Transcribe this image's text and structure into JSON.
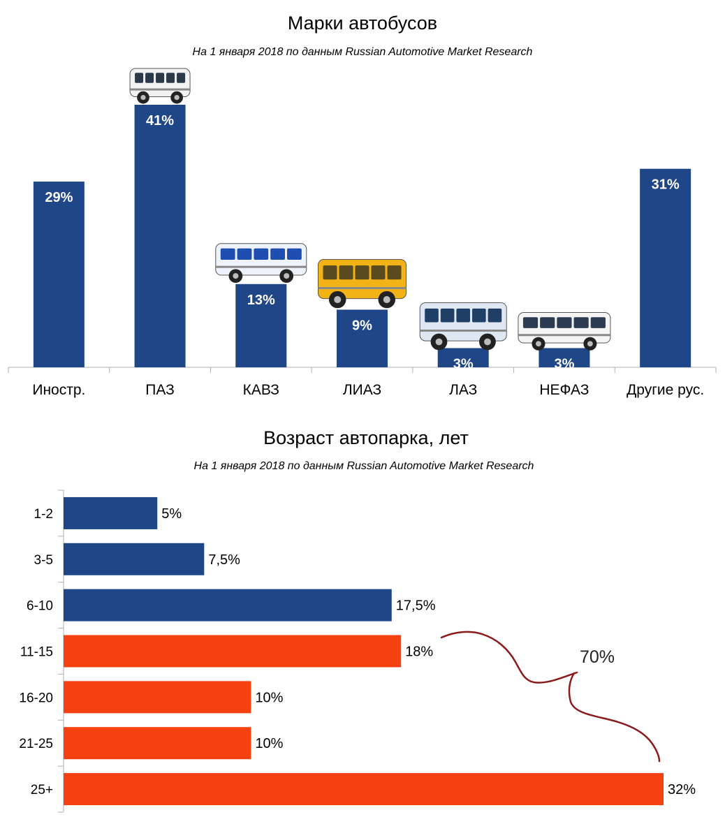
{
  "chart_data": [
    {
      "type": "bar",
      "title": "Марки автобусов",
      "subtitle": "На 1 января 2018 по данным Russian Automotive Market Research",
      "categories": [
        "Иностр.",
        "ПАЗ",
        "КАВЗ",
        "ЛИАЗ",
        "ЛАЗ",
        "НЕФАЗ",
        "Другие рус."
      ],
      "values": [
        29,
        41,
        13,
        9,
        3,
        3,
        31
      ],
      "labels": [
        "29%",
        "41%",
        "13%",
        "9%",
        "3%",
        "3%",
        "31%"
      ],
      "ylim": [
        0,
        41
      ],
      "bar_color": "#1f4787",
      "grid": false,
      "pictures": [
        "",
        "bus-paz",
        "bus-kavz",
        "bus-liaz",
        "bus-laz",
        "bus-nefaz",
        ""
      ]
    },
    {
      "type": "bar",
      "orientation": "horizontal",
      "title": "Возраст автопарка, лет",
      "subtitle": "На 1 января 2018 по данным Russian Automotive Market Research",
      "categories": [
        "1-2",
        "3-5",
        "6-10",
        "11-15",
        "16-20",
        "21-25",
        "25+"
      ],
      "values": [
        5,
        7.5,
        17.5,
        18,
        10,
        10,
        32
      ],
      "labels": [
        "5%",
        "7,5%",
        "17,5%",
        "18%",
        "10%",
        "10%",
        "32%"
      ],
      "colors": [
        "#1f4787",
        "#1f4787",
        "#1f4787",
        "#f5400f",
        "#f5400f",
        "#f5400f",
        "#f5400f"
      ],
      "xlim": [
        0,
        32
      ],
      "grid": false,
      "annotation": {
        "text": "70%",
        "color": "#8b1a1a"
      }
    }
  ]
}
